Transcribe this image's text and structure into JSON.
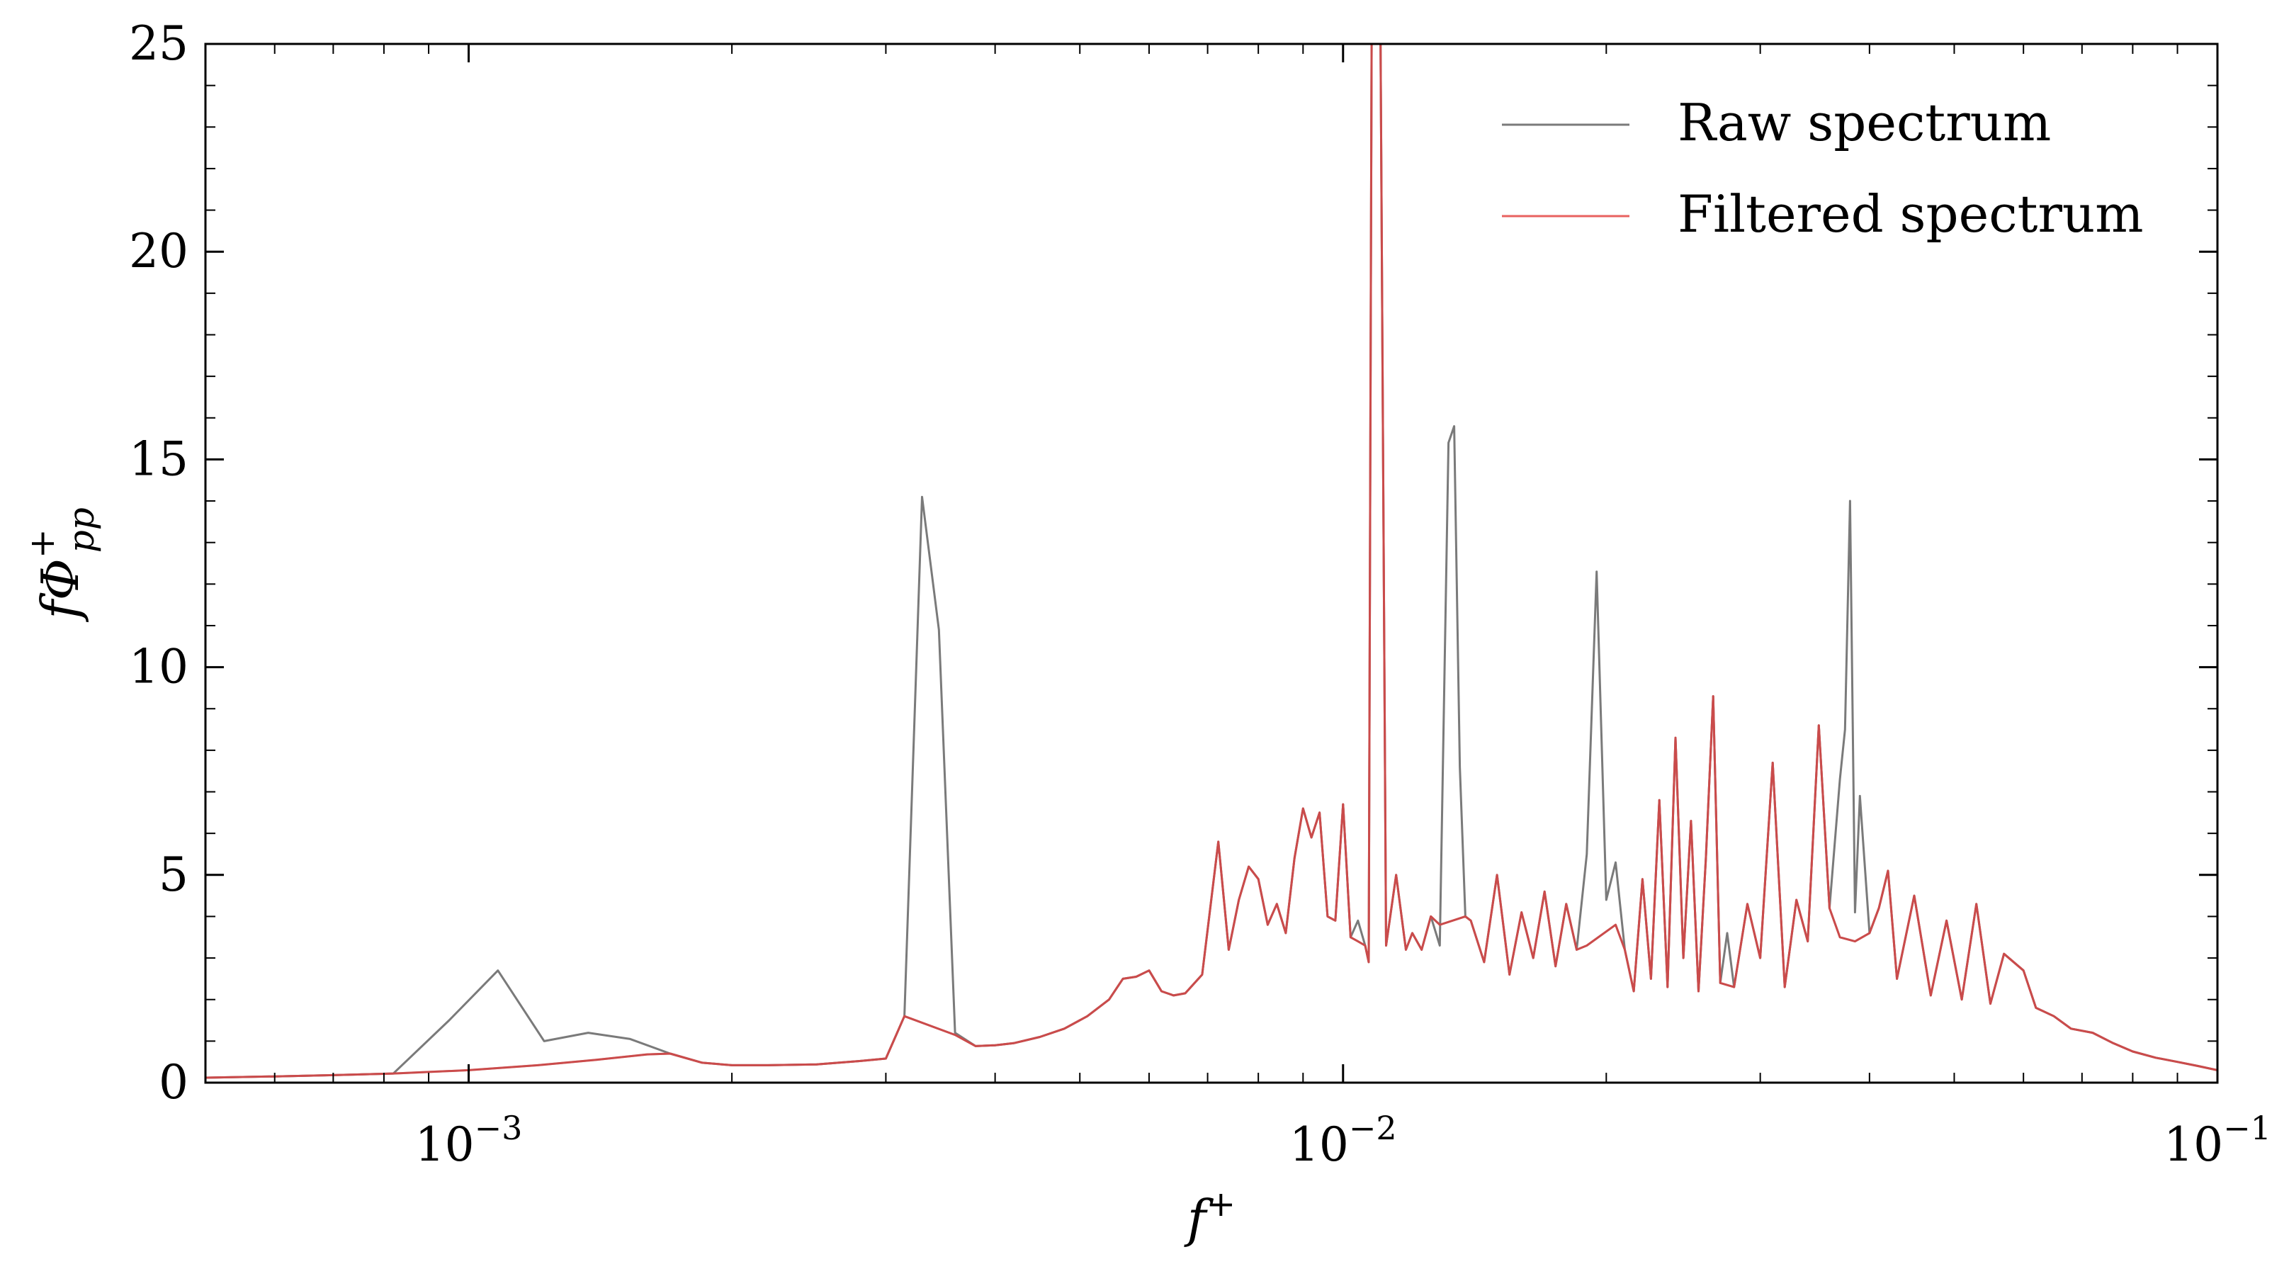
{
  "chart_data": {
    "type": "line",
    "x_scale": "log",
    "xlim": [
      0.0005,
      0.1
    ],
    "ylim": [
      0,
      25
    ],
    "xlabel": "f",
    "xlabel_sup": "+",
    "ylabel": "fΦ",
    "ylabel_sup": "+",
    "ylabel_sub": "pp",
    "x_ticks": [
      {
        "value": 0.001,
        "base": "10",
        "exp": "−3"
      },
      {
        "value": 0.01,
        "base": "10",
        "exp": "−2"
      },
      {
        "value": 0.1,
        "base": "10",
        "exp": "−1"
      }
    ],
    "y_ticks": [
      {
        "value": 0,
        "label": "0"
      },
      {
        "value": 5,
        "label": "5"
      },
      {
        "value": 10,
        "label": "10"
      },
      {
        "value": 15,
        "label": "15"
      },
      {
        "value": 20,
        "label": "20"
      },
      {
        "value": 25,
        "label": "25"
      }
    ],
    "legend_position": "top-right",
    "grid": false,
    "series": [
      {
        "name": "Raw spectrum",
        "color": "#7a7a7a",
        "points": [
          [
            0.0005,
            0.12
          ],
          [
            0.0006,
            0.15
          ],
          [
            0.0007,
            0.18
          ],
          [
            0.00082,
            0.22
          ],
          [
            0.00095,
            1.5
          ],
          [
            0.00108,
            2.7
          ],
          [
            0.00122,
            1.0
          ],
          [
            0.00137,
            1.2
          ],
          [
            0.00153,
            1.05
          ],
          [
            0.0017,
            0.7
          ],
          [
            0.00185,
            0.48
          ],
          [
            0.002,
            0.42
          ],
          [
            0.0022,
            0.42
          ],
          [
            0.0025,
            0.44
          ],
          [
            0.0028,
            0.52
          ],
          [
            0.003,
            0.58
          ],
          [
            0.00315,
            1.6
          ],
          [
            0.0033,
            14.1
          ],
          [
            0.00345,
            10.9
          ],
          [
            0.0036,
            1.2
          ],
          [
            0.0038,
            0.88
          ],
          [
            0.004,
            0.9
          ],
          [
            0.0042,
            0.95
          ],
          [
            0.0045,
            1.1
          ],
          [
            0.0048,
            1.3
          ],
          [
            0.0051,
            1.6
          ],
          [
            0.0054,
            2.0
          ],
          [
            0.0056,
            2.5
          ],
          [
            0.0058,
            2.55
          ],
          [
            0.006,
            2.7
          ],
          [
            0.0062,
            2.2
          ],
          [
            0.0064,
            2.1
          ],
          [
            0.0066,
            2.15
          ],
          [
            0.0069,
            2.6
          ],
          [
            0.0072,
            5.8
          ],
          [
            0.0074,
            3.2
          ],
          [
            0.0076,
            4.4
          ],
          [
            0.0078,
            5.2
          ],
          [
            0.008,
            4.9
          ],
          [
            0.0082,
            3.8
          ],
          [
            0.0084,
            4.3
          ],
          [
            0.0086,
            3.6
          ],
          [
            0.0088,
            5.4
          ],
          [
            0.009,
            6.6
          ],
          [
            0.0092,
            5.9
          ],
          [
            0.0094,
            6.5
          ],
          [
            0.0096,
            4.0
          ],
          [
            0.0098,
            3.9
          ],
          [
            0.01,
            6.7
          ],
          [
            0.0102,
            3.5
          ],
          [
            0.0104,
            3.9
          ],
          [
            0.0106,
            3.3
          ],
          [
            0.0107,
            2.9
          ],
          [
            0.0108,
            30
          ],
          [
            0.011,
            30
          ],
          [
            0.0112,
            3.3
          ],
          [
            0.0115,
            5.0
          ],
          [
            0.0118,
            3.2
          ],
          [
            0.012,
            3.6
          ],
          [
            0.0123,
            3.2
          ],
          [
            0.0126,
            4.0
          ],
          [
            0.0129,
            3.3
          ],
          [
            0.0132,
            15.4
          ],
          [
            0.0134,
            15.8
          ],
          [
            0.0136,
            7.6
          ],
          [
            0.0138,
            4.0
          ],
          [
            0.014,
            3.9
          ],
          [
            0.0145,
            2.9
          ],
          [
            0.015,
            5.0
          ],
          [
            0.0155,
            2.6
          ],
          [
            0.016,
            4.1
          ],
          [
            0.0165,
            3.0
          ],
          [
            0.017,
            4.6
          ],
          [
            0.0175,
            2.8
          ],
          [
            0.018,
            4.3
          ],
          [
            0.0185,
            3.2
          ],
          [
            0.019,
            5.5
          ],
          [
            0.0195,
            12.3
          ],
          [
            0.02,
            4.4
          ],
          [
            0.0205,
            5.3
          ],
          [
            0.021,
            3.2
          ],
          [
            0.0215,
            2.2
          ],
          [
            0.022,
            4.9
          ],
          [
            0.0225,
            2.5
          ],
          [
            0.023,
            6.8
          ],
          [
            0.0235,
            2.3
          ],
          [
            0.024,
            8.3
          ],
          [
            0.0245,
            3.0
          ],
          [
            0.025,
            6.3
          ],
          [
            0.0255,
            2.2
          ],
          [
            0.026,
            5.4
          ],
          [
            0.0265,
            9.3
          ],
          [
            0.027,
            2.4
          ],
          [
            0.0275,
            3.6
          ],
          [
            0.028,
            2.3
          ],
          [
            0.029,
            4.3
          ],
          [
            0.03,
            3.0
          ],
          [
            0.031,
            7.7
          ],
          [
            0.032,
            2.3
          ],
          [
            0.033,
            4.4
          ],
          [
            0.034,
            3.4
          ],
          [
            0.035,
            8.6
          ],
          [
            0.036,
            4.2
          ],
          [
            0.037,
            7.3
          ],
          [
            0.0375,
            8.5
          ],
          [
            0.038,
            14.0
          ],
          [
            0.0385,
            4.1
          ],
          [
            0.039,
            6.9
          ],
          [
            0.04,
            3.6
          ],
          [
            0.041,
            4.2
          ],
          [
            0.042,
            5.1
          ],
          [
            0.043,
            2.5
          ],
          [
            0.045,
            4.5
          ],
          [
            0.047,
            2.1
          ],
          [
            0.049,
            3.9
          ],
          [
            0.051,
            2.0
          ],
          [
            0.053,
            4.3
          ],
          [
            0.055,
            1.9
          ],
          [
            0.057,
            3.1
          ],
          [
            0.06,
            2.7
          ],
          [
            0.062,
            1.8
          ],
          [
            0.065,
            1.6
          ],
          [
            0.068,
            1.3
          ],
          [
            0.072,
            1.2
          ],
          [
            0.076,
            0.95
          ],
          [
            0.08,
            0.75
          ],
          [
            0.085,
            0.6
          ],
          [
            0.09,
            0.5
          ],
          [
            0.095,
            0.4
          ],
          [
            0.1,
            0.3
          ]
        ]
      },
      {
        "name": "Filtered spectrum",
        "color": "#e8615f",
        "points": [
          [
            0.0005,
            0.12
          ],
          [
            0.0006,
            0.15
          ],
          [
            0.0007,
            0.18
          ],
          [
            0.00082,
            0.22
          ],
          [
            0.001,
            0.3
          ],
          [
            0.0012,
            0.42
          ],
          [
            0.0014,
            0.55
          ],
          [
            0.0016,
            0.68
          ],
          [
            0.0017,
            0.7
          ],
          [
            0.00185,
            0.48
          ],
          [
            0.002,
            0.42
          ],
          [
            0.0022,
            0.42
          ],
          [
            0.0025,
            0.44
          ],
          [
            0.0028,
            0.52
          ],
          [
            0.003,
            0.58
          ],
          [
            0.00315,
            1.6
          ],
          [
            0.0036,
            1.15
          ],
          [
            0.0038,
            0.88
          ],
          [
            0.004,
            0.9
          ],
          [
            0.0042,
            0.95
          ],
          [
            0.0045,
            1.1
          ],
          [
            0.0048,
            1.3
          ],
          [
            0.0051,
            1.6
          ],
          [
            0.0054,
            2.0
          ],
          [
            0.0056,
            2.5
          ],
          [
            0.0058,
            2.55
          ],
          [
            0.006,
            2.7
          ],
          [
            0.0062,
            2.2
          ],
          [
            0.0064,
            2.1
          ],
          [
            0.0066,
            2.15
          ],
          [
            0.0069,
            2.6
          ],
          [
            0.0072,
            5.8
          ],
          [
            0.0074,
            3.2
          ],
          [
            0.0076,
            4.4
          ],
          [
            0.0078,
            5.2
          ],
          [
            0.008,
            4.9
          ],
          [
            0.0082,
            3.8
          ],
          [
            0.0084,
            4.3
          ],
          [
            0.0086,
            3.6
          ],
          [
            0.0088,
            5.4
          ],
          [
            0.009,
            6.6
          ],
          [
            0.0092,
            5.9
          ],
          [
            0.0094,
            6.5
          ],
          [
            0.0096,
            4.0
          ],
          [
            0.0098,
            3.9
          ],
          [
            0.01,
            6.7
          ],
          [
            0.0102,
            3.5
          ],
          [
            0.0104,
            3.4
          ],
          [
            0.0106,
            3.3
          ],
          [
            0.0107,
            2.9
          ],
          [
            0.0108,
            30
          ],
          [
            0.011,
            30
          ],
          [
            0.0112,
            3.3
          ],
          [
            0.0115,
            5.0
          ],
          [
            0.0118,
            3.2
          ],
          [
            0.012,
            3.6
          ],
          [
            0.0123,
            3.2
          ],
          [
            0.0126,
            4.0
          ],
          [
            0.0129,
            3.8
          ],
          [
            0.0138,
            4.0
          ],
          [
            0.014,
            3.9
          ],
          [
            0.0145,
            2.9
          ],
          [
            0.015,
            5.0
          ],
          [
            0.0155,
            2.6
          ],
          [
            0.016,
            4.1
          ],
          [
            0.0165,
            3.0
          ],
          [
            0.017,
            4.6
          ],
          [
            0.0175,
            2.8
          ],
          [
            0.018,
            4.3
          ],
          [
            0.0185,
            3.2
          ],
          [
            0.019,
            3.3
          ],
          [
            0.0205,
            3.8
          ],
          [
            0.021,
            3.2
          ],
          [
            0.0215,
            2.2
          ],
          [
            0.022,
            4.9
          ],
          [
            0.0225,
            2.5
          ],
          [
            0.023,
            6.8
          ],
          [
            0.0235,
            2.3
          ],
          [
            0.024,
            8.3
          ],
          [
            0.0245,
            3.0
          ],
          [
            0.025,
            6.3
          ],
          [
            0.0255,
            2.2
          ],
          [
            0.026,
            5.4
          ],
          [
            0.0265,
            9.3
          ],
          [
            0.027,
            2.4
          ],
          [
            0.028,
            2.3
          ],
          [
            0.029,
            4.3
          ],
          [
            0.03,
            3.0
          ],
          [
            0.031,
            7.7
          ],
          [
            0.032,
            2.3
          ],
          [
            0.033,
            4.4
          ],
          [
            0.034,
            3.4
          ],
          [
            0.035,
            8.6
          ],
          [
            0.036,
            4.2
          ],
          [
            0.037,
            3.5
          ],
          [
            0.0385,
            3.4
          ],
          [
            0.04,
            3.6
          ],
          [
            0.041,
            4.2
          ],
          [
            0.042,
            5.1
          ],
          [
            0.043,
            2.5
          ],
          [
            0.045,
            4.5
          ],
          [
            0.047,
            2.1
          ],
          [
            0.049,
            3.9
          ],
          [
            0.051,
            2.0
          ],
          [
            0.053,
            4.3
          ],
          [
            0.055,
            1.9
          ],
          [
            0.057,
            3.1
          ],
          [
            0.06,
            2.7
          ],
          [
            0.062,
            1.8
          ],
          [
            0.065,
            1.6
          ],
          [
            0.068,
            1.3
          ],
          [
            0.072,
            1.2
          ],
          [
            0.076,
            0.95
          ],
          [
            0.08,
            0.75
          ],
          [
            0.085,
            0.6
          ],
          [
            0.09,
            0.5
          ],
          [
            0.095,
            0.4
          ],
          [
            0.1,
            0.3
          ]
        ]
      }
    ],
    "overlap_color": "#b03a3a"
  }
}
